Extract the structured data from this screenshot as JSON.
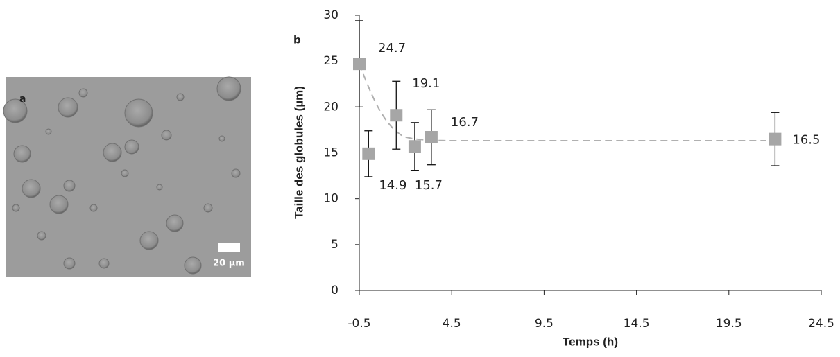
{
  "panel_a": {
    "label": "a",
    "scale_bar": "20 µm"
  },
  "chart_data": {
    "type": "scatter",
    "label": "b",
    "x_label": "Temps (h)",
    "y_label": "Taille des globules (µm)",
    "x": [
      -0.5,
      0,
      1.5,
      2.5,
      3.4,
      22
    ],
    "values": [
      24.7,
      14.9,
      19.1,
      15.7,
      16.7,
      16.5
    ],
    "errors": [
      4.7,
      2.5,
      3.7,
      2.6,
      3,
      2.9
    ],
    "color": "#a6a6a6",
    "xlim": [
      -0.5,
      24.5
    ],
    "xticks": [
      -0.5,
      4.5,
      9.5,
      14.5,
      19.5,
      24.5
    ],
    "ylim": [
      0,
      30
    ],
    "yticks": [
      0,
      5,
      10,
      15,
      20,
      25,
      30
    ]
  }
}
